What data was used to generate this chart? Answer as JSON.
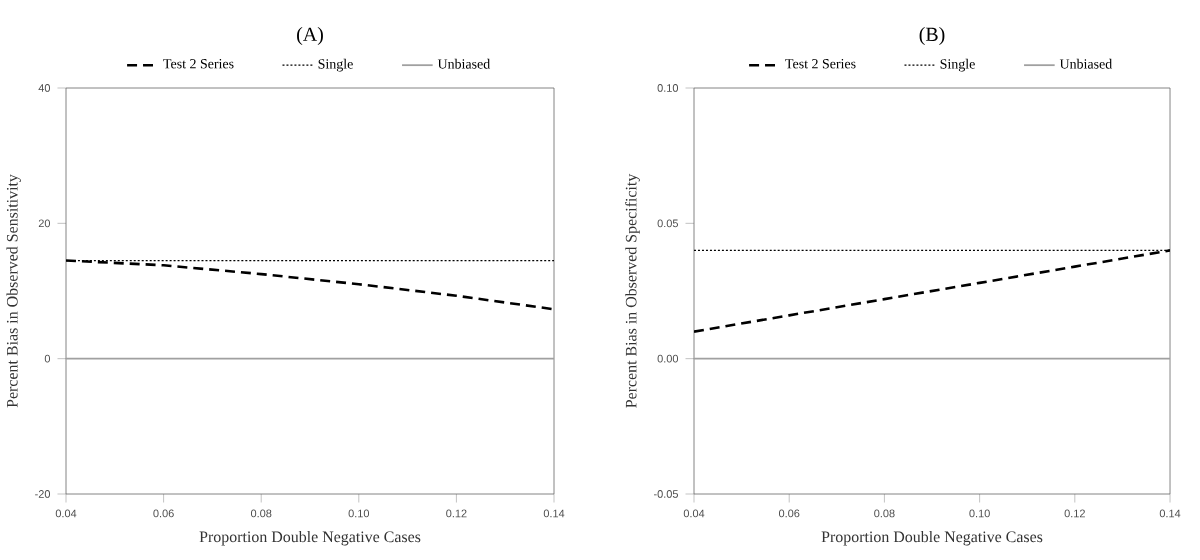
{
  "chart_data": [
    {
      "type": "line",
      "title": "(A)",
      "xlabel": "Proportion Double Negative Cases",
      "ylabel": "Percent Bias in Observed Sensitivity",
      "legend": "top",
      "x": [
        0.04,
        0.06,
        0.08,
        0.1,
        0.12,
        0.14
      ],
      "xlim": [
        0.04,
        0.14
      ],
      "xticks": [
        0.04,
        0.06,
        0.08,
        {
          "value": 0.1,
          "label": "0.10"
        },
        0.12,
        0.14
      ],
      "ylim": [
        -20,
        40
      ],
      "yticks": [
        -20,
        0,
        20,
        40
      ],
      "series": [
        {
          "name": "Test 2 Series",
          "color": "#000000",
          "line_style": "dashed",
          "values": [
            14.5,
            13.8,
            12.5,
            11.0,
            9.3,
            7.3
          ]
        },
        {
          "name": "Single",
          "color": "#000000",
          "line_style": "dotted",
          "values": [
            14.5,
            14.5,
            14.5,
            14.5,
            14.5,
            14.5
          ]
        },
        {
          "name": "Unbiased",
          "color": "#a0a0a0",
          "line_style": "solid",
          "values": [
            0,
            0,
            0,
            0,
            0,
            0
          ]
        }
      ]
    },
    {
      "type": "line",
      "title": "(B)",
      "xlabel": "Proportion Double Negative Cases",
      "ylabel": "Percent Bias in Observed Specificity",
      "legend": "top",
      "x": [
        0.04,
        0.06,
        0.08,
        0.1,
        0.12,
        0.14
      ],
      "xlim": [
        0.04,
        0.14
      ],
      "xticks": [
        0.04,
        0.06,
        0.08,
        {
          "value": 0.1,
          "label": "0.10"
        },
        0.12,
        0.14
      ],
      "ylim": [
        -0.05,
        0.1
      ],
      "yticks": [
        -0.05,
        {
          "value": 0.0,
          "label": "0.00"
        },
        0.05,
        {
          "value": 0.1,
          "label": "0.10"
        }
      ],
      "series": [
        {
          "name": "Test 2 Series",
          "color": "#000000",
          "line_style": "dashed",
          "values": [
            0.01,
            0.016,
            0.022,
            0.028,
            0.034,
            0.04
          ]
        },
        {
          "name": "Single",
          "color": "#000000",
          "line_style": "dotted",
          "values": [
            0.04,
            0.04,
            0.04,
            0.04,
            0.04,
            0.04
          ]
        },
        {
          "name": "Unbiased",
          "color": "#a0a0a0",
          "line_style": "solid",
          "values": [
            0,
            0,
            0,
            0,
            0,
            0
          ]
        }
      ]
    }
  ]
}
